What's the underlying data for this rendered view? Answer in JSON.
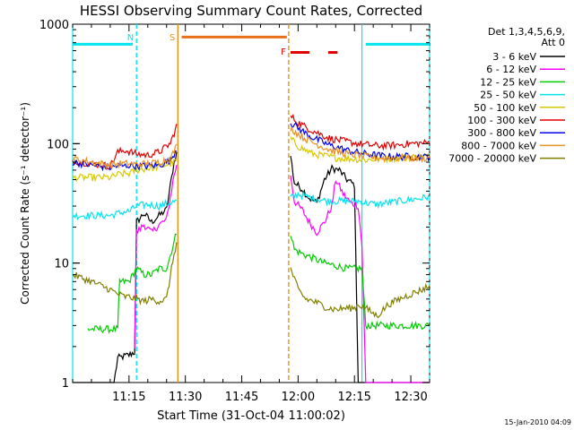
{
  "chart_data": {
    "type": "line",
    "title": "HESSI Observing Summary Count Rates, Corrected",
    "xlabel": "Start Time (31-Oct-04 11:00:02)",
    "ylabel": "Corrected Count Rate (s⁻¹ detector⁻¹)",
    "footer": "15-Jan-2010 04:09",
    "legend_title": "Det 1,3,4,5,6,9,",
    "legend_subtitle": "Att 0",
    "legend_position": "right",
    "yscale": "log",
    "ylim": [
      1,
      1000
    ],
    "xlim_min": [
      0,
      95
    ],
    "x_ticks": [
      {
        "t": 15,
        "label": "11:15"
      },
      {
        "t": 30,
        "label": "11:30"
      },
      {
        "t": 45,
        "label": "11:45"
      },
      {
        "t": 60,
        "label": "12:00"
      },
      {
        "t": 75,
        "label": "12:15"
      },
      {
        "t": 90,
        "label": "12:30"
      }
    ],
    "y_ticks": [
      {
        "v": 1,
        "label": "1"
      },
      {
        "v": 10,
        "label": "10"
      },
      {
        "v": 100,
        "label": "100"
      },
      {
        "v": 1000,
        "label": "1000"
      }
    ],
    "markers": [
      {
        "label": "N",
        "t": 17,
        "color": "#00e5ee",
        "style": "dashed"
      },
      {
        "label": "S",
        "t": 28,
        "color": "#e8901a",
        "style": "solid"
      },
      {
        "label": "F",
        "t": 57.5,
        "color": "#e8901a",
        "style": "dashed"
      }
    ],
    "extra_vlines": [
      {
        "t": 0,
        "color": "#00e5ee",
        "style": "solid"
      },
      {
        "t": 77,
        "color": "#00e5ee",
        "style": "solid"
      },
      {
        "t": 95,
        "color": "#00e5ee",
        "style": "dashed"
      }
    ],
    "segments": [
      {
        "name": "night",
        "color": "#00e5ee",
        "t0": 0,
        "t1": 16,
        "value": 680
      },
      {
        "name": "night2",
        "color": "#00e5ee",
        "t0": 78,
        "t1": 95,
        "value": 680
      },
      {
        "name": "saa",
        "color": "#e8701a",
        "t0": 29,
        "t1": 57,
        "value": 780
      },
      {
        "name": "flare1",
        "color": "#e00000",
        "t0": 58,
        "t1": 63,
        "value": 580
      },
      {
        "name": "flare2",
        "color": "#e00000",
        "t0": 68,
        "t1": 70.5,
        "value": 580
      }
    ],
    "series": [
      {
        "name": "3 - 6 keV",
        "color": "#000000",
        "points": [
          [
            0,
            1
          ],
          [
            11,
            1
          ],
          [
            12,
            1.6
          ],
          [
            15,
            1.7
          ],
          [
            16.5,
            1.8
          ],
          [
            17,
            22
          ],
          [
            19,
            26
          ],
          [
            21,
            22
          ],
          [
            23,
            25
          ],
          [
            25,
            28
          ],
          [
            27,
            70
          ],
          [
            28,
            90
          ],
          [
            58,
            80
          ],
          [
            59,
            47
          ],
          [
            61,
            42
          ],
          [
            63,
            35
          ],
          [
            65,
            32
          ],
          [
            67,
            50
          ],
          [
            69,
            62
          ],
          [
            71,
            60
          ],
          [
            73,
            50
          ],
          [
            75,
            45
          ],
          [
            76,
            1
          ],
          [
            95,
            1
          ]
        ]
      },
      {
        "name": "6 - 12 keV",
        "color": "#ff00ff",
        "points": [
          [
            16.5,
            2
          ],
          [
            17,
            18
          ],
          [
            19,
            21
          ],
          [
            21,
            18
          ],
          [
            23,
            21
          ],
          [
            25,
            23
          ],
          [
            27,
            55
          ],
          [
            28,
            70
          ],
          [
            58,
            55
          ],
          [
            59,
            33
          ],
          [
            61,
            28
          ],
          [
            63,
            22
          ],
          [
            65,
            18
          ],
          [
            67,
            22
          ],
          [
            69,
            30
          ],
          [
            70,
            50
          ],
          [
            72,
            38
          ],
          [
            74,
            32
          ],
          [
            76,
            30
          ],
          [
            77,
            14
          ],
          [
            78,
            1
          ],
          [
            95,
            1
          ]
        ]
      },
      {
        "name": "12 - 25 keV",
        "color": "#00cc00",
        "points": [
          [
            4,
            2.8
          ],
          [
            12,
            2.8
          ],
          [
            12.5,
            7
          ],
          [
            15,
            7
          ],
          [
            17,
            9
          ],
          [
            19,
            8
          ],
          [
            21,
            8
          ],
          [
            23,
            9
          ],
          [
            25,
            9
          ],
          [
            27,
            15
          ],
          [
            28,
            20
          ],
          [
            58,
            18
          ],
          [
            59,
            13
          ],
          [
            61,
            12
          ],
          [
            64,
            11
          ],
          [
            67,
            10
          ],
          [
            70,
            9.5
          ],
          [
            73,
            9
          ],
          [
            76,
            9
          ],
          [
            77,
            9
          ],
          [
            78,
            3
          ],
          [
            95,
            3
          ]
        ]
      },
      {
        "name": "25 - 50 keV",
        "color": "#00e5ee",
        "points": [
          [
            0,
            25
          ],
          [
            5,
            25
          ],
          [
            10,
            25
          ],
          [
            12,
            26
          ],
          [
            14,
            27
          ],
          [
            15,
            27
          ],
          [
            17,
            30
          ],
          [
            20,
            31
          ],
          [
            23,
            30
          ],
          [
            26,
            32
          ],
          [
            28,
            33
          ],
          [
            58,
            35
          ],
          [
            60,
            38
          ],
          [
            62,
            36
          ],
          [
            64,
            35
          ],
          [
            66,
            34
          ],
          [
            68,
            33
          ],
          [
            70,
            33
          ],
          [
            73,
            33
          ],
          [
            76,
            33
          ],
          [
            78,
            32
          ],
          [
            81,
            31
          ],
          [
            84,
            32
          ],
          [
            87,
            33
          ],
          [
            90,
            34
          ],
          [
            93,
            35
          ],
          [
            95,
            36
          ]
        ]
      },
      {
        "name": "50 - 100 keV",
        "color": "#d8c800",
        "points": [
          [
            0,
            52
          ],
          [
            5,
            52
          ],
          [
            10,
            52
          ],
          [
            12,
            55
          ],
          [
            14,
            56
          ],
          [
            15,
            56
          ],
          [
            17,
            60
          ],
          [
            20,
            62
          ],
          [
            23,
            64
          ],
          [
            26,
            68
          ],
          [
            28,
            72
          ],
          [
            58,
            110
          ],
          [
            60,
            95
          ],
          [
            62,
            88
          ],
          [
            64,
            82
          ],
          [
            66,
            80
          ],
          [
            68,
            78
          ],
          [
            70,
            76
          ],
          [
            73,
            75
          ],
          [
            76,
            74
          ],
          [
            78,
            73
          ],
          [
            81,
            74
          ],
          [
            84,
            75
          ],
          [
            87,
            76
          ],
          [
            90,
            77
          ],
          [
            93,
            78
          ],
          [
            95,
            78
          ]
        ]
      },
      {
        "name": "100 - 300 keV",
        "color": "#e00000",
        "points": [
          [
            0,
            72
          ],
          [
            5,
            68
          ],
          [
            10,
            65
          ],
          [
            12,
            85
          ],
          [
            14,
            88
          ],
          [
            15,
            86
          ],
          [
            17,
            82
          ],
          [
            20,
            80
          ],
          [
            23,
            85
          ],
          [
            26,
            100
          ],
          [
            28,
            150
          ],
          [
            58,
            170
          ],
          [
            60,
            150
          ],
          [
            62,
            138
          ],
          [
            64,
            128
          ],
          [
            66,
            120
          ],
          [
            68,
            112
          ],
          [
            70,
            108
          ],
          [
            73,
            104
          ],
          [
            76,
            100
          ],
          [
            78,
            98
          ],
          [
            81,
            96
          ],
          [
            84,
            96
          ],
          [
            87,
            98
          ],
          [
            90,
            100
          ],
          [
            93,
            101
          ],
          [
            95,
            102
          ]
        ]
      },
      {
        "name": "300 - 800 keV",
        "color": "#0000ee",
        "points": [
          [
            0,
            70
          ],
          [
            5,
            66
          ],
          [
            10,
            63
          ],
          [
            12,
            65
          ],
          [
            14,
            65
          ],
          [
            15,
            66
          ],
          [
            17,
            65
          ],
          [
            20,
            65
          ],
          [
            23,
            66
          ],
          [
            26,
            72
          ],
          [
            28,
            95
          ],
          [
            58,
            150
          ],
          [
            60,
            135
          ],
          [
            62,
            122
          ],
          [
            64,
            112
          ],
          [
            66,
            105
          ],
          [
            68,
            98
          ],
          [
            70,
            94
          ],
          [
            73,
            88
          ],
          [
            76,
            84
          ],
          [
            78,
            82
          ],
          [
            81,
            80
          ],
          [
            84,
            78
          ],
          [
            87,
            78
          ],
          [
            90,
            78
          ],
          [
            93,
            77
          ],
          [
            95,
            78
          ]
        ]
      },
      {
        "name": "800 - 7000 keV",
        "color": "#e89020",
        "points": [
          [
            0,
            75
          ],
          [
            5,
            70
          ],
          [
            10,
            66
          ],
          [
            12,
            68
          ],
          [
            14,
            68
          ],
          [
            15,
            68
          ],
          [
            17,
            67
          ],
          [
            20,
            68
          ],
          [
            23,
            70
          ],
          [
            26,
            75
          ],
          [
            28,
            100
          ],
          [
            58,
            135
          ],
          [
            60,
            120
          ],
          [
            62,
            110
          ],
          [
            64,
            102
          ],
          [
            66,
            96
          ],
          [
            68,
            90
          ],
          [
            70,
            86
          ],
          [
            73,
            82
          ],
          [
            76,
            80
          ],
          [
            78,
            78
          ],
          [
            81,
            76
          ],
          [
            84,
            76
          ],
          [
            87,
            76
          ],
          [
            90,
            76
          ],
          [
            93,
            75
          ],
          [
            95,
            76
          ]
        ]
      },
      {
        "name": "7000 - 20000 keV",
        "color": "#808000",
        "points": [
          [
            0,
            8
          ],
          [
            5,
            7
          ],
          [
            10,
            6
          ],
          [
            12,
            5.5
          ],
          [
            14,
            5.2
          ],
          [
            15,
            5.2
          ],
          [
            17,
            5
          ],
          [
            19,
            4.8
          ],
          [
            21,
            5
          ],
          [
            23,
            4.8
          ],
          [
            25,
            5
          ],
          [
            27,
            12
          ],
          [
            28,
            16
          ],
          [
            58,
            9
          ],
          [
            60,
            6
          ],
          [
            62,
            5
          ],
          [
            64,
            4.8
          ],
          [
            66,
            4.5
          ],
          [
            68,
            4.2
          ],
          [
            70,
            4.1
          ],
          [
            73,
            4.2
          ],
          [
            75,
            4.2
          ],
          [
            76,
            4.5
          ],
          [
            78,
            4.2
          ],
          [
            81,
            3.6
          ],
          [
            84,
            4.5
          ],
          [
            87,
            5
          ],
          [
            90,
            5.5
          ],
          [
            93,
            6
          ],
          [
            95,
            6.5
          ]
        ]
      }
    ]
  }
}
